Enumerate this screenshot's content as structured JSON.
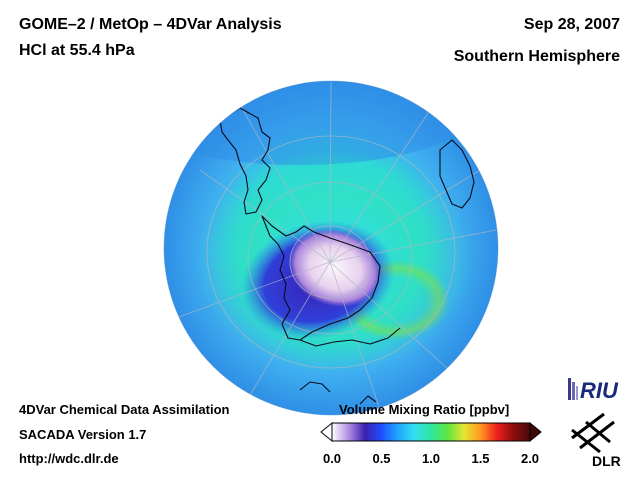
{
  "header": {
    "title_line1": "GOME–2 / MetOp – 4DVar Analysis",
    "title_line2": "HCl at 55.4 hPa",
    "date": "Sep 28, 2007",
    "hemisphere": "Southern Hemisphere"
  },
  "footer": {
    "line1": "4DVar Chemical Data Assimilation",
    "line2": "SACADA Version 1.7",
    "line3": "http://wdc.dlr.de"
  },
  "colorbar": {
    "title": "Volume Mixing Ratio [ppbv]",
    "min": 0.0,
    "max": 2.0,
    "ticks": [
      "0.0",
      "0.5",
      "1.0",
      "1.5",
      "2.0"
    ],
    "tick_values": [
      0.0,
      0.5,
      1.0,
      1.5,
      2.0
    ],
    "colors": [
      "#ffffff",
      "#b38fe6",
      "#3a1fb0",
      "#1f4fff",
      "#1fa6ff",
      "#33e0f0",
      "#2ee6a0",
      "#5ce640",
      "#e6e633",
      "#ff9a1f",
      "#f01f1f",
      "#8c0d0d",
      "#4d0a0a"
    ]
  },
  "logos": {
    "riu_text": "RIU",
    "dlr_text": "DLR"
  },
  "map": {
    "projection": "orthographic south polar",
    "ocean_color": "#4fc0f0",
    "ozone_hole_core_color": "#f4e8f4",
    "low_hcl_color": "#3a2bc4",
    "background_field_color": "#33d0e8"
  }
}
